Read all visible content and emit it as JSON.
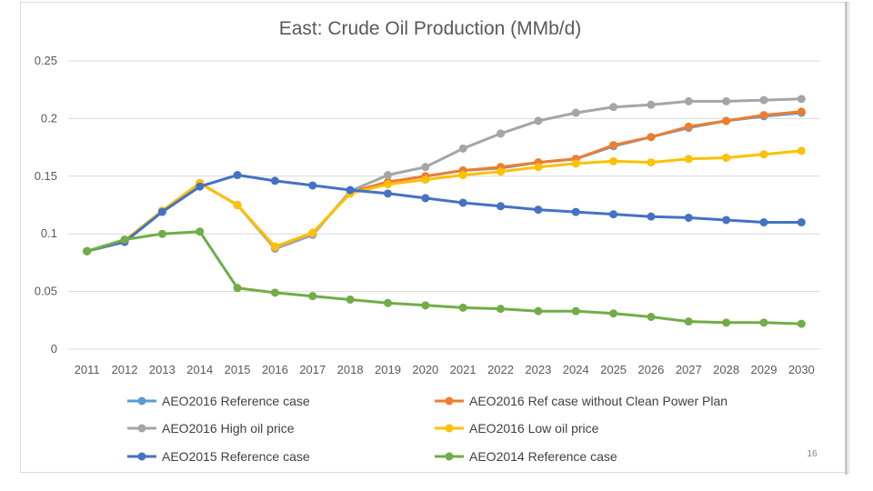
{
  "chart_data": {
    "type": "line",
    "title": "East: Crude Oil Production (MMb/d)",
    "xlabel": "",
    "ylabel": "",
    "ylim": [
      0,
      0.25
    ],
    "yticks": [
      0,
      0.05,
      0.1,
      0.15,
      0.2,
      0.25
    ],
    "ytick_labels": [
      "0",
      "0.05",
      "0.1",
      "0.15",
      "0.2",
      "0.25"
    ],
    "grid": true,
    "legend_position": "bottom",
    "categories": [
      "2011",
      "2012",
      "2013",
      "2014",
      "2015",
      "2016",
      "2017",
      "2018",
      "2019",
      "2020",
      "2021",
      "2022",
      "2023",
      "2024",
      "2025",
      "2026",
      "2027",
      "2028",
      "2029",
      "2030"
    ],
    "series": [
      {
        "name": "AEO2016 Reference case",
        "color": "#5b9bd5",
        "values": [
          0.085,
          0.094,
          0.12,
          0.144,
          0.125,
          0.088,
          0.1,
          0.136,
          0.145,
          0.15,
          0.155,
          0.157,
          0.162,
          0.165,
          0.176,
          0.184,
          0.192,
          0.198,
          0.202,
          0.205
        ]
      },
      {
        "name": "AEO2016 Ref case without Clean Power Plan",
        "color": "#ed7d31",
        "values": [
          0.085,
          0.094,
          0.12,
          0.144,
          0.125,
          0.088,
          0.1,
          0.136,
          0.145,
          0.15,
          0.155,
          0.158,
          0.162,
          0.165,
          0.177,
          0.184,
          0.193,
          0.198,
          0.203,
          0.206
        ]
      },
      {
        "name": "AEO2016 High oil price",
        "color": "#a5a5a5",
        "values": [
          0.085,
          0.094,
          0.12,
          0.144,
          0.125,
          0.087,
          0.099,
          0.137,
          0.151,
          0.158,
          0.174,
          0.187,
          0.198,
          0.205,
          0.21,
          0.212,
          0.215,
          0.215,
          0.216,
          0.217
        ]
      },
      {
        "name": "AEO2016 Low oil price",
        "color": "#ffc000",
        "values": [
          0.085,
          0.094,
          0.12,
          0.144,
          0.125,
          0.089,
          0.101,
          0.135,
          0.143,
          0.147,
          0.151,
          0.154,
          0.158,
          0.161,
          0.163,
          0.162,
          0.165,
          0.166,
          0.169,
          0.172
        ]
      },
      {
        "name": "AEO2015 Reference case",
        "color": "#4472c4",
        "values": [
          0.085,
          0.093,
          0.119,
          0.141,
          0.151,
          0.146,
          0.142,
          0.138,
          0.135,
          0.131,
          0.127,
          0.124,
          0.121,
          0.119,
          0.117,
          0.115,
          0.114,
          0.112,
          0.11,
          0.11
        ]
      },
      {
        "name": "AEO2014 Reference case",
        "color": "#70ad47",
        "values": [
          0.085,
          0.095,
          0.1,
          0.102,
          0.053,
          0.049,
          0.046,
          0.043,
          0.04,
          0.038,
          0.036,
          0.035,
          0.033,
          0.033,
          0.031,
          0.028,
          0.024,
          0.023,
          0.023,
          0.022
        ]
      }
    ]
  },
  "legend_order": [
    0,
    1,
    2,
    3,
    4,
    5
  ],
  "page_number": "16",
  "colors": {
    "grid": "#d9d9d9",
    "text": "#595959",
    "background": "#ffffff"
  }
}
